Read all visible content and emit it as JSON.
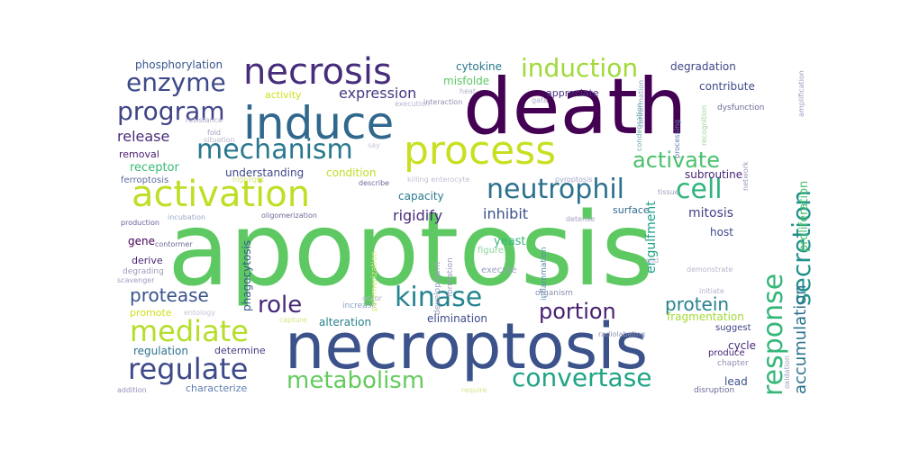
{
  "words": [
    {
      "text": "apoptosis",
      "color": "#5ec962"
    },
    {
      "text": "death",
      "color": "#440154"
    },
    {
      "text": "necroptosis",
      "color": "#3b528b"
    },
    {
      "text": "induce",
      "color": "#31688e"
    },
    {
      "text": "necrosis",
      "color": "#472d7b"
    },
    {
      "text": "process",
      "color": "#c8e020"
    },
    {
      "text": "activation",
      "color": "#bddf26"
    },
    {
      "text": "mechanism",
      "color": "#2a788e"
    },
    {
      "text": "neutrophil",
      "color": "#2c728e"
    },
    {
      "text": "cell",
      "color": "#2fb47c"
    },
    {
      "text": "induction",
      "color": "#a0da39"
    },
    {
      "text": "enzyme",
      "color": "#3e4989"
    },
    {
      "text": "program",
      "color": "#414487"
    },
    {
      "text": "response",
      "color": "#35b779"
    },
    {
      "text": "secretion",
      "color": "#21918c"
    },
    {
      "text": "kinase",
      "color": "#25858e"
    },
    {
      "text": "regulate",
      "color": "#3e4a89"
    },
    {
      "text": "mediate",
      "color": "#b5de2b"
    },
    {
      "text": "metabolism",
      "color": "#65cb5e"
    },
    {
      "text": "convertase",
      "color": "#20a486"
    },
    {
      "text": "role",
      "color": "#482878"
    },
    {
      "text": "portion",
      "color": "#481f70"
    },
    {
      "text": "activate",
      "color": "#4ac16d"
    },
    {
      "text": "protease",
      "color": "#3b528b"
    },
    {
      "text": "protein",
      "color": "#26828e"
    },
    {
      "text": "accumulation",
      "color": "#2c728e"
    },
    {
      "text": "proliferation",
      "color": "#4ac16d"
    },
    {
      "text": "expression",
      "color": "#443983"
    },
    {
      "text": "release",
      "color": "#472c7a"
    },
    {
      "text": "inhibit",
      "color": "#3b528b"
    },
    {
      "text": "mitosis",
      "color": "#424186"
    },
    {
      "text": "rigidify",
      "color": "#472d7b"
    },
    {
      "text": "phosphorylation",
      "color": "#39568c"
    },
    {
      "text": "cytokine",
      "color": "#2a788e"
    },
    {
      "text": "degradation",
      "color": "#404688"
    },
    {
      "text": "appreciate",
      "color": "#46337e"
    },
    {
      "text": "contribute",
      "color": "#3e4c8a"
    },
    {
      "text": "activity",
      "color": "#cde11d"
    },
    {
      "text": "misfolde",
      "color": "#5ac864"
    },
    {
      "text": "removal",
      "color": "#481b6d"
    },
    {
      "text": "receptor",
      "color": "#3aba76"
    },
    {
      "text": "understanding",
      "color": "#3e4989"
    },
    {
      "text": "condition",
      "color": "#bddf26"
    },
    {
      "text": "subroutine",
      "color": "#482475"
    },
    {
      "text": "ferroptosis",
      "color": "#5e6b9e"
    },
    {
      "text": "capacity",
      "color": "#2a788e"
    },
    {
      "text": "surface",
      "color": "#31688e"
    },
    {
      "text": "host",
      "color": "#3e4a89"
    },
    {
      "text": "engulfment",
      "color": "#1fa088"
    },
    {
      "text": "gene",
      "color": "#440154"
    },
    {
      "text": "derive",
      "color": "#482878"
    },
    {
      "text": "degrading",
      "color": "#9b9bbf"
    },
    {
      "text": "scavenger",
      "color": "#a19bbf"
    },
    {
      "text": "yeast",
      "color": "#35b779"
    },
    {
      "text": "demonstrate",
      "color": "#b6b6cf"
    },
    {
      "text": "phagocytosis",
      "color": "#38598c"
    },
    {
      "text": "promote",
      "color": "#d0e11c"
    },
    {
      "text": "alteration",
      "color": "#26828e"
    },
    {
      "text": "elimination",
      "color": "#3e4a89"
    },
    {
      "text": "fragmentation",
      "color": "#a2da37"
    },
    {
      "text": "suggest",
      "color": "#414487"
    },
    {
      "text": "regulation",
      "color": "#2c728e"
    },
    {
      "text": "determine",
      "color": "#443b84"
    },
    {
      "text": "produce",
      "color": "#482576"
    },
    {
      "text": "cycle",
      "color": "#472a7a"
    },
    {
      "text": "lead",
      "color": "#3b528b"
    },
    {
      "text": "chapter",
      "color": "#8f8fb5"
    },
    {
      "text": "characterize",
      "color": "#5e7fb0"
    },
    {
      "text": "addition",
      "color": "#9a8fbf"
    },
    {
      "text": "require",
      "color": "#d6e68a"
    },
    {
      "text": "disruption",
      "color": "#6b6b9a"
    },
    {
      "text": "initiate",
      "color": "#b4b4cf"
    },
    {
      "text": "organism",
      "color": "#8a8fb0"
    },
    {
      "text": "radiolabeling",
      "color": "#8f8fb5"
    },
    {
      "text": "figure",
      "color": "#8fd49b"
    },
    {
      "text": "execute",
      "color": "#9ba0c5"
    },
    {
      "text": "increase",
      "color": "#8a9fc0"
    },
    {
      "text": "capture",
      "color": "#d7e586"
    },
    {
      "text": "development",
      "color": "#9d9dbf"
    },
    {
      "text": "formation",
      "color": "#9a9ac0"
    },
    {
      "text": "inflammation",
      "color": "#5e8fa8"
    },
    {
      "text": "polymerization",
      "color": "#d5e87d"
    },
    {
      "text": "conformation",
      "color": "#8fa0c0"
    },
    {
      "text": "contormer",
      "color": "#6b6b9a"
    },
    {
      "text": "production",
      "color": "#6b5e9a"
    },
    {
      "text": "incubation",
      "color": "#9ba8c8"
    },
    {
      "text": "oligomerization",
      "color": "#6b6b9a"
    },
    {
      "text": "detense",
      "color": "#a0a0c0"
    },
    {
      "text": "killing enterocyte",
      "color": "#c0c0d5"
    },
    {
      "text": "pyroptosis",
      "color": "#a5a5c8"
    },
    {
      "text": "tissue",
      "color": "#9a9abf"
    },
    {
      "text": "describe",
      "color": "#6b6b9a"
    },
    {
      "text": "highlight",
      "color": "#d5e87d"
    },
    {
      "text": "situation",
      "color": "#b9b9d0"
    },
    {
      "text": "fold",
      "color": "#9fa0c0"
    },
    {
      "text": "resistance",
      "color": "#a8a8c8"
    },
    {
      "text": "execution",
      "color": "#b5b5d0"
    },
    {
      "text": "interaction",
      "color": "#8f8fb5"
    },
    {
      "text": "heat",
      "color": "#b0b0cc"
    },
    {
      "text": "gate",
      "color": "#b0b0cc"
    },
    {
      "text": "condensation",
      "color": "#6baab0"
    },
    {
      "text": "processing",
      "color": "#5e7fb0"
    },
    {
      "text": "recognition",
      "color": "#a0d4a0"
    },
    {
      "text": "dysfunction",
      "color": "#6b6b9a"
    },
    {
      "text": "network",
      "color": "#9a9ac0"
    },
    {
      "text": "amplification",
      "color": "#9a9ac0"
    },
    {
      "text": "oxidation",
      "color": "#a0a0c0"
    },
    {
      "text": "say",
      "color": "#c5c5d8"
    },
    {
      "text": "occur",
      "color": "#b0b0cc"
    },
    {
      "text": "entology",
      "color": "#c5c5d8"
    },
    {
      "text": "end",
      "color": "#b0b0cc"
    }
  ]
}
